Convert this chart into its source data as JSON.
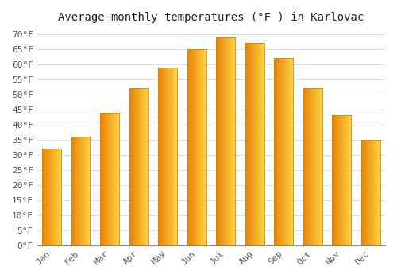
{
  "title": "Average monthly temperatures (°F ) in Karlovac",
  "months": [
    "Jan",
    "Feb",
    "Mar",
    "Apr",
    "May",
    "Jun",
    "Jul",
    "Aug",
    "Sep",
    "Oct",
    "Nov",
    "Dec"
  ],
  "values": [
    32,
    36,
    44,
    52,
    59,
    65,
    69,
    67,
    62,
    52,
    43,
    35
  ],
  "bar_color": "#FFA500",
  "bar_edge_color": "#CC8800",
  "ylim_min": 0,
  "ylim_max": 70,
  "ytick_step": 5,
  "background_color": "#FFFFFF",
  "grid_color": "#DDDDDD",
  "title_fontsize": 10,
  "tick_fontsize": 8,
  "font_family": "monospace",
  "tick_color": "#555555"
}
